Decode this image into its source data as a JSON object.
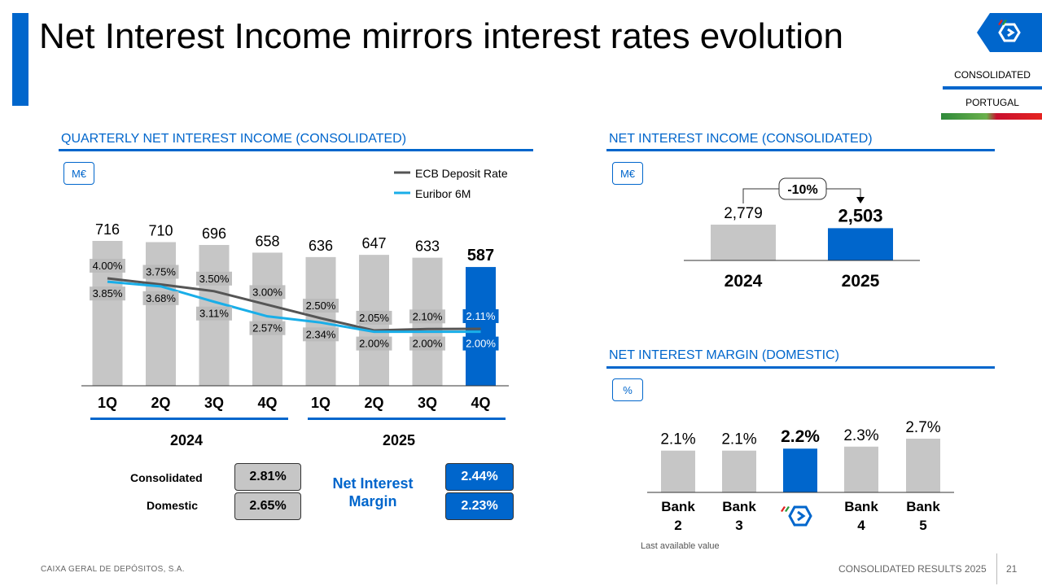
{
  "title": "Net Interest Income mirrors interest rates evolution",
  "tags": {
    "consolidated": "CONSOLIDATED",
    "portugal": "PORTUGAL"
  },
  "footer": {
    "company": "CAIXA GERAL DE DEPÓSITOS, S.A.",
    "report": "CONSOLIDATED RESULTS 2025",
    "page": "21"
  },
  "colors": {
    "accent": "#0066cc",
    "bar_grey": "#c6c6c6",
    "ecb_line": "#555555",
    "euribor_line": "#19aee8"
  },
  "quarterly": {
    "section_title": "QUARTERLY NET INTEREST INCOME (CONSOLIDATED)",
    "unit": "M€",
    "year_labels": [
      "2024",
      "2025"
    ],
    "nim": {
      "label": "Net Interest Margin",
      "rows": [
        {
          "label": "Consolidated",
          "v2024": "2.81%",
          "v2025": "2.44%"
        },
        {
          "label": "Domestic",
          "v2024": "2.65%",
          "v2025": "2.23%"
        }
      ]
    }
  },
  "annual": {
    "section_title": "NET INTEREST INCOME (CONSOLIDATED)",
    "unit": "M€",
    "change": "-10%"
  },
  "margin": {
    "section_title": "NET INTEREST MARGIN (DOMESTIC)",
    "unit": "%",
    "note": "Last available value"
  },
  "chart_data": [
    {
      "type": "bar",
      "title": "QUARTERLY NET INTEREST INCOME (CONSOLIDATED)",
      "categories": [
        "1Q",
        "2Q",
        "3Q",
        "4Q",
        "1Q",
        "2Q",
        "3Q",
        "4Q"
      ],
      "values": [
        716,
        710,
        696,
        658,
        636,
        647,
        633,
        587
      ],
      "value_labels": [
        "716",
        "710",
        "696",
        "658",
        "636",
        "647",
        "633",
        "587"
      ],
      "ylim": [
        0,
        760
      ],
      "lines": [
        {
          "name": "ECB Deposit Rate",
          "values": [
            4.0,
            3.75,
            3.5,
            3.0,
            2.5,
            2.05,
            2.1,
            2.11
          ],
          "labels": [
            "4.00%",
            "3.75%",
            "3.50%",
            "3.00%",
            "2.50%",
            "2.05%",
            "2.10%",
            "2.11%"
          ]
        },
        {
          "name": "Euribor 6M",
          "values": [
            3.85,
            3.68,
            3.11,
            2.57,
            2.34,
            2.0,
            2.0,
            2.0
          ],
          "labels": [
            "3.85%",
            "3.68%",
            "3.11%",
            "2.57%",
            "2.34%",
            "2.00%",
            "2.00%",
            "2.00%"
          ]
        }
      ],
      "rate_ylim": [
        0,
        7.1
      ]
    },
    {
      "type": "bar",
      "title": "NET INTEREST INCOME (CONSOLIDATED)",
      "categories": [
        "2024",
        "2025"
      ],
      "values": [
        2779,
        2503
      ],
      "value_labels": [
        "2,779",
        "2,503"
      ],
      "ylim": [
        0,
        5000
      ]
    },
    {
      "type": "bar",
      "title": "NET INTEREST MARGIN (DOMESTIC)",
      "categories": [
        "Bank 2",
        "Bank 3",
        "CGD",
        "Bank 4",
        "Bank 5"
      ],
      "values": [
        2.1,
        2.1,
        2.2,
        2.3,
        2.7
      ],
      "value_labels": [
        "2.1%",
        "2.1%",
        "2.2%",
        "2.3%",
        "2.7%"
      ],
      "ylim": [
        0,
        4.0
      ]
    }
  ]
}
